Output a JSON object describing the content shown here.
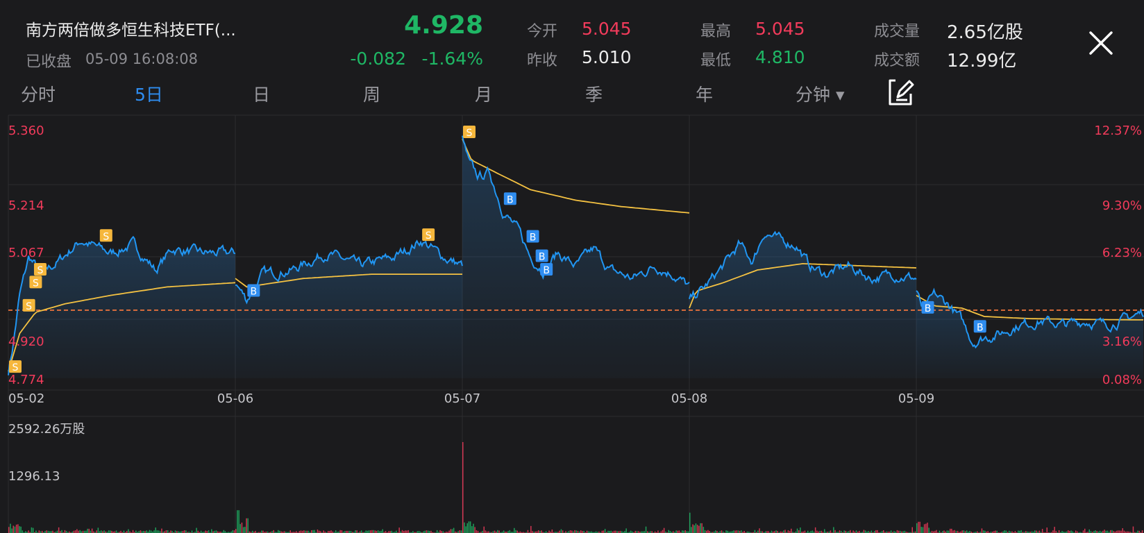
{
  "header": {
    "title": "南方两倍做多恒生科技ETF(...",
    "status": "已收盘",
    "datetime": "05-09 16:08:08",
    "price": "4.928",
    "change": "-0.082",
    "change_pct": "-1.64%"
  },
  "stats": {
    "open_label": "今开",
    "open_value": "5.045",
    "prev_close_label": "昨收",
    "prev_close_value": "5.010",
    "high_label": "最高",
    "high_value": "5.045",
    "low_label": "最低",
    "low_value": "4.810",
    "volume_label": "成交量",
    "volume_value": "2.65亿股",
    "turnover_label": "成交额",
    "turnover_value": "12.99亿"
  },
  "tabs": [
    {
      "label": "分时"
    },
    {
      "label": "5日",
      "active": true
    },
    {
      "label": "日"
    },
    {
      "label": "周"
    },
    {
      "label": "月"
    },
    {
      "label": "季"
    },
    {
      "label": "年"
    },
    {
      "label": "分钟 ▾"
    }
  ],
  "icons": {
    "close": "close-icon",
    "edit": "edit-drawing-icon"
  },
  "colors": {
    "price_line": "#2196f3",
    "avg_line": "#f5c242",
    "up": "#f23b5b",
    "down": "#1fb765",
    "marker_sell": "#f6b73c",
    "marker_buy": "#2f8df0",
    "prev_close_line": "#ff7a3d"
  },
  "chart_data": {
    "type": "line",
    "x_labels": [
      "05-02",
      "05-06",
      "05-07",
      "05-08",
      "05-09"
    ],
    "y_left_ticks": [
      "5.360",
      "5.214",
      "5.067",
      "4.920",
      "4.774"
    ],
    "y_right_ticks": [
      "12.37%",
      "9.30%",
      "6.23%",
      "3.16%",
      "0.08%"
    ],
    "ylim": [
      4.774,
      5.36
    ],
    "prev_close_reference": 4.935,
    "series": [
      {
        "key": "price",
        "days": [
          [
            [
              0,
              4.79
            ],
            [
              0.02,
              4.85
            ],
            [
              0.05,
              4.97
            ],
            [
              0.09,
              5.06
            ],
            [
              0.15,
              5.02
            ],
            [
              0.22,
              5.05
            ],
            [
              0.32,
              5.1
            ],
            [
              0.45,
              5.07
            ],
            [
              0.55,
              5.09
            ],
            [
              0.65,
              5.03
            ],
            [
              0.72,
              5.08
            ],
            [
              0.85,
              5.07
            ],
            [
              1,
              5.07
            ]
          ],
          [
            [
              0,
              5.0
            ],
            [
              0.05,
              4.96
            ],
            [
              0.12,
              5.02
            ],
            [
              0.25,
              5.03
            ],
            [
              0.4,
              5.07
            ],
            [
              0.55,
              5.04
            ],
            [
              0.7,
              5.06
            ],
            [
              0.82,
              5.1
            ],
            [
              0.92,
              5.06
            ],
            [
              1,
              5.04
            ]
          ],
          [
            [
              0,
              5.34
            ],
            [
              0.03,
              5.28
            ],
            [
              0.07,
              5.25
            ],
            [
              0.12,
              5.26
            ],
            [
              0.18,
              5.17
            ],
            [
              0.25,
              5.12
            ],
            [
              0.3,
              5.06
            ],
            [
              0.36,
              5.03
            ],
            [
              0.42,
              5.07
            ],
            [
              0.5,
              5.04
            ],
            [
              0.58,
              5.08
            ],
            [
              0.65,
              5.03
            ],
            [
              0.75,
              5.01
            ],
            [
              0.85,
              5.04
            ],
            [
              0.93,
              5.02
            ],
            [
              1,
              4.99
            ]
          ],
          [
            [
              0,
              4.96
            ],
            [
              0.07,
              4.99
            ],
            [
              0.15,
              5.04
            ],
            [
              0.22,
              5.09
            ],
            [
              0.28,
              5.05
            ],
            [
              0.33,
              5.12
            ],
            [
              0.4,
              5.1
            ],
            [
              0.47,
              5.09
            ],
            [
              0.53,
              5.04
            ],
            [
              0.6,
              5.02
            ],
            [
              0.7,
              5.04
            ],
            [
              0.8,
              5.01
            ],
            [
              0.9,
              5.02
            ],
            [
              1,
              5.01
            ]
          ],
          [
            [
              0,
              4.98
            ],
            [
              0.03,
              4.93
            ],
            [
              0.08,
              4.97
            ],
            [
              0.14,
              4.95
            ],
            [
              0.2,
              4.91
            ],
            [
              0.25,
              4.86
            ],
            [
              0.3,
              4.87
            ],
            [
              0.37,
              4.88
            ],
            [
              0.45,
              4.9
            ],
            [
              0.55,
              4.91
            ],
            [
              0.65,
              4.9
            ],
            [
              0.75,
              4.91
            ],
            [
              0.83,
              4.9
            ],
            [
              0.9,
              4.91
            ],
            [
              1,
              4.93
            ]
          ]
        ]
      },
      {
        "key": "avg",
        "days": [
          [
            [
              0,
              4.79
            ],
            [
              0.05,
              4.88
            ],
            [
              0.12,
              4.93
            ],
            [
              0.25,
              4.95
            ],
            [
              0.45,
              4.97
            ],
            [
              0.7,
              4.99
            ],
            [
              1,
              5.0
            ]
          ],
          [
            [
              0,
              5.01
            ],
            [
              0.05,
              4.99
            ],
            [
              0.3,
              5.01
            ],
            [
              0.6,
              5.02
            ],
            [
              1,
              5.02
            ]
          ],
          [
            [
              0,
              5.34
            ],
            [
              0.04,
              5.29
            ],
            [
              0.15,
              5.26
            ],
            [
              0.3,
              5.22
            ],
            [
              0.5,
              5.195
            ],
            [
              0.7,
              5.18
            ],
            [
              1,
              5.165
            ]
          ],
          [
            [
              0,
              4.94
            ],
            [
              0.03,
              4.98
            ],
            [
              0.15,
              5.0
            ],
            [
              0.3,
              5.03
            ],
            [
              0.5,
              5.045
            ],
            [
              0.75,
              5.04
            ],
            [
              1,
              5.035
            ]
          ],
          [
            [
              0,
              4.97
            ],
            [
              0.08,
              4.945
            ],
            [
              0.2,
              4.94
            ],
            [
              0.3,
              4.92
            ],
            [
              0.5,
              4.915
            ],
            [
              0.75,
              4.913
            ],
            [
              1,
              4.912
            ]
          ]
        ]
      }
    ],
    "trade_markers": [
      {
        "type": "S",
        "day": 0,
        "t": 0.0,
        "v": 4.8
      },
      {
        "type": "S",
        "day": 0,
        "t": 0.06,
        "v": 4.945
      },
      {
        "type": "S",
        "day": 0,
        "t": 0.09,
        "v": 5.0
      },
      {
        "type": "S",
        "day": 0,
        "t": 0.11,
        "v": 5.03
      },
      {
        "type": "S",
        "day": 0,
        "t": 0.4,
        "v": 5.11
      },
      {
        "type": "B",
        "day": 1,
        "t": 0.05,
        "v": 4.98
      },
      {
        "type": "S",
        "day": 1,
        "t": 0.82,
        "v": 5.112
      },
      {
        "type": "S",
        "day": 2,
        "t": 0.0,
        "v": 5.355
      },
      {
        "type": "B",
        "day": 2,
        "t": 0.18,
        "v": 5.197
      },
      {
        "type": "B",
        "day": 2,
        "t": 0.28,
        "v": 5.108
      },
      {
        "type": "B",
        "day": 2,
        "t": 0.32,
        "v": 5.062
      },
      {
        "type": "B",
        "day": 2,
        "t": 0.34,
        "v": 5.03
      },
      {
        "type": "B",
        "day": 4,
        "t": 0.02,
        "v": 4.94
      },
      {
        "type": "B",
        "day": 4,
        "t": 0.25,
        "v": 4.895
      }
    ],
    "volume": {
      "tick_labels": [
        "2592.26万股",
        "1296.13"
      ],
      "ylim": [
        0,
        2592.26
      ],
      "spikes": [
        {
          "day": 0,
          "t": 0.1,
          "v": 160
        },
        {
          "day": 0,
          "t": 0.35,
          "v": 120
        },
        {
          "day": 1,
          "t": 0.01,
          "v": 650
        },
        {
          "day": 1,
          "t": 0.05,
          "v": 420
        },
        {
          "day": 1,
          "t": 0.95,
          "v": 110
        },
        {
          "day": 2,
          "t": 0.0,
          "v": 2592
        },
        {
          "day": 2,
          "t": 0.03,
          "v": 330
        },
        {
          "day": 2,
          "t": 0.3,
          "v": 200
        },
        {
          "day": 2,
          "t": 0.72,
          "v": 130
        },
        {
          "day": 3,
          "t": 0.0,
          "v": 580
        },
        {
          "day": 3,
          "t": 0.05,
          "v": 280
        },
        {
          "day": 4,
          "t": 0.01,
          "v": 320
        },
        {
          "day": 4,
          "t": 0.15,
          "v": 120
        }
      ]
    }
  }
}
